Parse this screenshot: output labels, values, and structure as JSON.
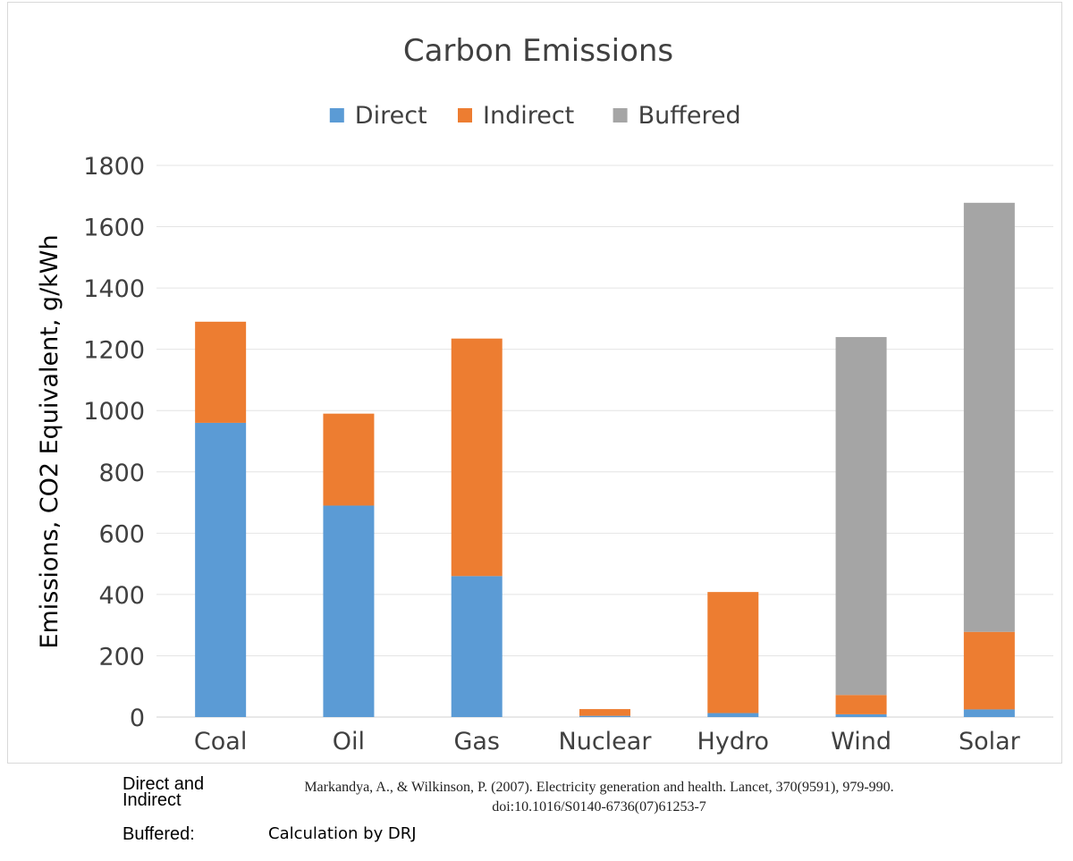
{
  "chart_data": {
    "type": "bar",
    "stacked": true,
    "title": "Carbon Emissions",
    "ylabel": "Emissions, CO2 Equivalent, g/kWh",
    "xlabel": "",
    "ylim": [
      0,
      1800
    ],
    "yticks": [
      0,
      200,
      400,
      600,
      800,
      1000,
      1200,
      1400,
      1600,
      1800
    ],
    "grid": true,
    "legend_position": "top",
    "categories": [
      "Coal",
      "Oil",
      "Gas",
      "Nuclear",
      "Hydro",
      "Wind",
      "Solar"
    ],
    "series": [
      {
        "name": "Direct",
        "color": "#5b9bd5",
        "values": [
          960,
          690,
          460,
          4,
          13,
          9,
          25
        ]
      },
      {
        "name": "Indirect",
        "color": "#ed7d31",
        "values": [
          330,
          300,
          775,
          22,
          395,
          63,
          253
        ]
      },
      {
        "name": "Buffered",
        "color": "#a5a5a5",
        "values": [
          0,
          0,
          0,
          0,
          0,
          1168,
          1400
        ]
      }
    ]
  },
  "footer": {
    "direct_indirect_label_line1": "Direct and",
    "direct_indirect_label_line2": "Indirect",
    "citation_line1": "Markandya, A., & Wilkinson, P. (2007). Electricity generation and health. Lancet, 370(9591), 979-990.",
    "citation_line2": "doi:10.1016/S0140-6736(07)61253-7",
    "buffered_label": "Buffered",
    "buffered_colon": ":",
    "buffered_note": "Calculation by DRJ"
  }
}
